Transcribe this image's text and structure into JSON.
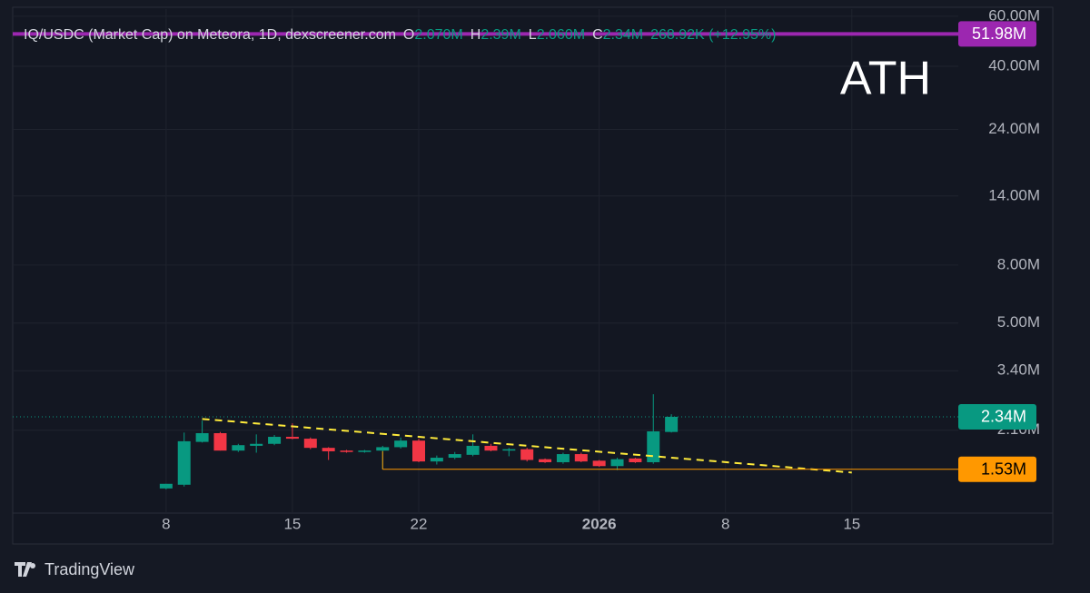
{
  "chart_data": {
    "type": "candlestick",
    "header": {
      "symbol": "IQ/USDC (Market Cap) on Meteora, 1D, dexscreener.com",
      "o_label": "O",
      "o": "2.070M",
      "h_label": "H",
      "h": "2.39M",
      "l_label": "L",
      "l": "2.060M",
      "c_label": "C",
      "c": "2.34M",
      "change": "268.92K (+12.95%)"
    },
    "annotation": "ATH",
    "x": [
      0,
      1,
      2,
      3,
      4,
      5,
      6,
      7,
      8,
      9,
      10,
      11,
      12,
      13,
      14,
      15,
      16,
      17,
      18,
      19,
      20,
      21,
      22,
      23,
      24,
      25,
      26,
      27,
      28
    ],
    "open": [
      1.31,
      1.35,
      1.91,
      2.05,
      1.78,
      1.85,
      1.88,
      1.99,
      1.96,
      1.82,
      1.78,
      1.76,
      1.78,
      1.83,
      1.93,
      1.63,
      1.68,
      1.72,
      1.85,
      1.78,
      1.8,
      1.66,
      1.62,
      1.73,
      1.64,
      1.57,
      1.67,
      1.62,
      2.07
    ],
    "high": [
      1.36,
      2.06,
      2.27,
      2.07,
      1.88,
      2.03,
      2.02,
      2.22,
      1.98,
      1.83,
      1.79,
      1.79,
      1.85,
      1.98,
      1.96,
      1.71,
      1.76,
      2.03,
      1.88,
      1.82,
      1.82,
      1.67,
      1.75,
      1.75,
      1.65,
      1.68,
      1.68,
      2.81,
      2.39
    ],
    "low": [
      1.3,
      1.33,
      1.9,
      1.78,
      1.76,
      1.75,
      1.86,
      1.95,
      1.8,
      1.65,
      1.75,
      1.75,
      1.53,
      1.81,
      1.62,
      1.59,
      1.66,
      1.7,
      1.77,
      1.7,
      1.63,
      1.61,
      1.6,
      1.62,
      1.56,
      1.52,
      1.61,
      1.6,
      2.06
    ],
    "close": [
      1.36,
      1.92,
      2.05,
      1.78,
      1.86,
      1.88,
      1.99,
      1.96,
      1.82,
      1.77,
      1.76,
      1.78,
      1.83,
      1.93,
      1.63,
      1.68,
      1.73,
      1.85,
      1.78,
      1.8,
      1.65,
      1.62,
      1.73,
      1.63,
      1.57,
      1.66,
      1.62,
      2.08,
      2.34
    ],
    "up_color": "#089981",
    "down_color": "#f23645",
    "xlim": [
      -8.5,
      43.9
    ],
    "xticks": [
      {
        "value": 0,
        "label": "8"
      },
      {
        "value": 7,
        "label": "15"
      },
      {
        "value": 14,
        "label": "22"
      },
      {
        "value": 24,
        "label": "2026"
      },
      {
        "value": 31,
        "label": "8"
      },
      {
        "value": 38,
        "label": "15"
      }
    ],
    "log_y": true,
    "ylim": [
      1.073,
      63.6
    ],
    "yticks": [
      {
        "value": 60,
        "label": "60.00M"
      },
      {
        "value": 40,
        "label": "40.00M"
      },
      {
        "value": 24,
        "label": "24.00M"
      },
      {
        "value": 14,
        "label": "14.00M"
      },
      {
        "value": 8,
        "label": "8.00M"
      },
      {
        "value": 5,
        "label": "5.00M"
      },
      {
        "value": 3.4,
        "label": "3.40M"
      },
      {
        "value": 2.1,
        "label": "2.10M"
      }
    ],
    "grid": true,
    "price_lines": [
      {
        "value": 51.98,
        "label": "51.98M",
        "color": "#9c27b0",
        "style": "solid"
      },
      {
        "value": 2.34,
        "label": "2.34M",
        "color": "#089981",
        "style": "dotted"
      },
      {
        "value": 1.53,
        "label": "1.53M",
        "color": "#ff9800",
        "style": "solid",
        "from_x": 12
      }
    ],
    "trendline": {
      "x": [
        2,
        38
      ],
      "y": [
        2.3,
        1.49
      ],
      "color": "#ffeb3b"
    },
    "brand": "TradingView"
  }
}
